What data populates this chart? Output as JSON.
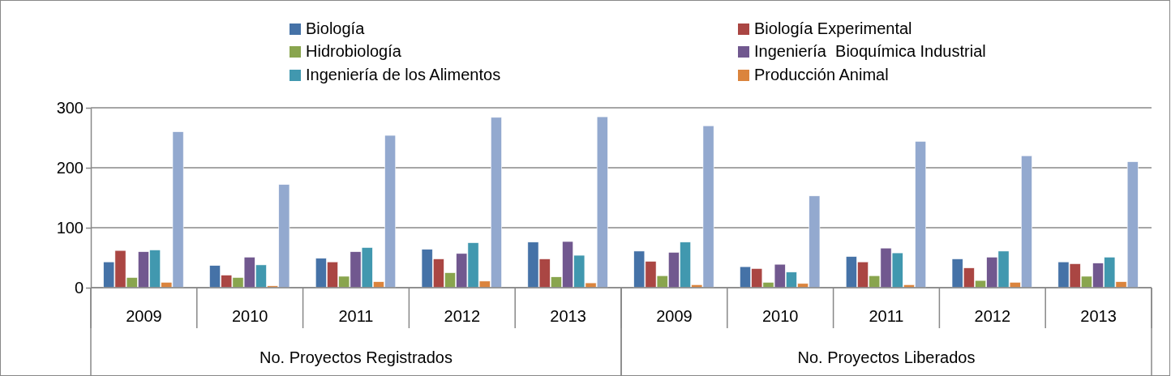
{
  "chart_data": {
    "type": "bar",
    "categories": [
      "2009",
      "2010",
      "2011",
      "2012",
      "2013",
      "2009",
      "2010",
      "2011",
      "2012",
      "2013"
    ],
    "annotations": [
      "No. Proyectos Registrados",
      "No. Proyectos Liberados"
    ],
    "ylim": [
      0,
      300
    ],
    "yticks": [
      0,
      100,
      200,
      300
    ],
    "grid": "y",
    "legend": "top",
    "series": [
      {
        "name": "Biología",
        "color": "#4572a7",
        "values": [
          43,
          37,
          49,
          64,
          76,
          61,
          35,
          52,
          48,
          43
        ]
      },
      {
        "name": "Biología Experimental",
        "color": "#aa4643",
        "values": [
          62,
          21,
          43,
          48,
          48,
          44,
          32,
          43,
          33,
          40
        ]
      },
      {
        "name": "Hidrobiología",
        "color": "#89a54e",
        "values": [
          17,
          17,
          19,
          25,
          18,
          20,
          9,
          20,
          12,
          19
        ]
      },
      {
        "name": "Ingeniería  Bioquímica Industrial",
        "color": "#71588f",
        "values": [
          60,
          51,
          60,
          57,
          77,
          59,
          39,
          66,
          51,
          41
        ]
      },
      {
        "name": "Ingeniería de los Alimentos",
        "color": "#4198af",
        "values": [
          63,
          38,
          67,
          75,
          54,
          76,
          26,
          58,
          61,
          51
        ]
      },
      {
        "name": "Producción Animal",
        "color": "#db843d",
        "values": [
          9,
          3,
          10,
          11,
          8,
          5,
          7,
          5,
          9,
          10
        ]
      },
      {
        "color": "#93a9cf",
        "values": [
          260,
          172,
          254,
          284,
          285,
          270,
          153,
          244,
          220,
          210
        ]
      }
    ]
  }
}
